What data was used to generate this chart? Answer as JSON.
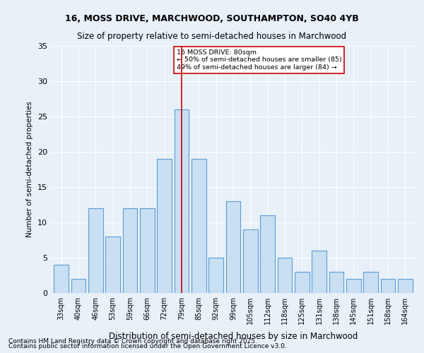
{
  "title1": "16, MOSS DRIVE, MARCHWOOD, SOUTHAMPTON, SO40 4YB",
  "title2": "Size of property relative to semi-detached houses in Marchwood",
  "xlabel": "Distribution of semi-detached houses by size in Marchwood",
  "ylabel": "Number of semi-detached properties",
  "categories": [
    "33sqm",
    "40sqm",
    "46sqm",
    "53sqm",
    "59sqm",
    "66sqm",
    "72sqm",
    "79sqm",
    "85sqm",
    "92sqm",
    "99sqm",
    "105sqm",
    "112sqm",
    "118sqm",
    "125sqm",
    "131sqm",
    "138sqm",
    "145sqm",
    "151sqm",
    "158sqm",
    "164sqm"
  ],
  "values": [
    4,
    2,
    12,
    8,
    12,
    12,
    19,
    26,
    19,
    5,
    13,
    9,
    11,
    5,
    3,
    6,
    3,
    2,
    3,
    2,
    2
  ],
  "highlight_index": 7,
  "highlight_value": 80,
  "bar_color": "#c9dff2",
  "bar_edge_color": "#5b9bd5",
  "highlight_line_color": "#cc0000",
  "annotation_box_edge": "#cc0000",
  "annotation_text": "16 MOSS DRIVE: 80sqm\n← 50% of semi-detached houses are smaller (85)\n49% of semi-detached houses are larger (84) →",
  "ylim": [
    0,
    35
  ],
  "yticks": [
    0,
    5,
    10,
    15,
    20,
    25,
    30,
    35
  ],
  "footer1": "Contains HM Land Registry data © Crown copyright and database right 2025.",
  "footer2": "Contains public sector information licensed under the Open Government Licence v3.0.",
  "bg_color": "#e8f0f8",
  "plot_bg_color": "#e8f0f8"
}
